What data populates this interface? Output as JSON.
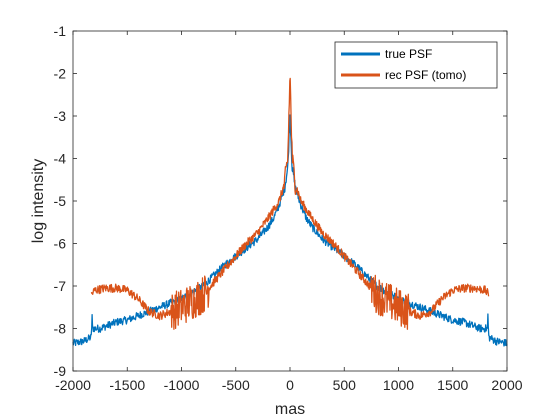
{
  "chart_data": {
    "type": "line",
    "title": "",
    "xlabel": "mas",
    "ylabel": "log intensity",
    "xlim": [
      -2000,
      2000
    ],
    "ylim": [
      -9,
      -1
    ],
    "xticks": [
      -2000,
      -1500,
      -1000,
      -500,
      0,
      500,
      1000,
      1500,
      2000
    ],
    "yticks": [
      -9,
      -8,
      -7,
      -6,
      -5,
      -4,
      -3,
      -2,
      -1
    ],
    "grid": false,
    "legend_location": "top-right",
    "series": [
      {
        "name": "true PSF",
        "color": "#0072BD",
        "x": [
          -2000,
          -1900,
          -1830,
          -1825,
          -1820,
          -1750,
          -1600,
          -1500,
          -1400,
          -1300,
          -1200,
          -1100,
          -1000,
          -900,
          -800,
          -700,
          -600,
          -500,
          -400,
          -300,
          -200,
          -150,
          -100,
          -50,
          -20,
          0,
          20,
          50,
          100,
          150,
          200,
          300,
          400,
          500,
          600,
          700,
          800,
          900,
          1000,
          1100,
          1200,
          1300,
          1400,
          1500,
          1600,
          1750,
          1820,
          1825,
          1830,
          1900,
          2000
        ],
        "y": [
          -8.35,
          -8.3,
          -8.2,
          -7.6,
          -8.0,
          -8.0,
          -7.85,
          -7.8,
          -7.7,
          -7.6,
          -7.5,
          -7.4,
          -7.3,
          -7.15,
          -7.0,
          -6.75,
          -6.5,
          -6.3,
          -6.1,
          -5.9,
          -5.6,
          -5.4,
          -5.1,
          -4.7,
          -4.2,
          -3.0,
          -4.2,
          -4.7,
          -5.1,
          -5.4,
          -5.6,
          -5.9,
          -6.1,
          -6.3,
          -6.5,
          -6.75,
          -7.0,
          -7.15,
          -7.3,
          -7.4,
          -7.5,
          -7.6,
          -7.7,
          -7.8,
          -7.85,
          -8.0,
          -8.0,
          -7.6,
          -8.2,
          -8.3,
          -8.35
        ]
      },
      {
        "name": "rec PSF (tomo)",
        "color": "#D95319",
        "x": [
          -1830,
          -1800,
          -1700,
          -1600,
          -1500,
          -1400,
          -1300,
          -1200,
          -1100,
          -1000,
          -900,
          -800,
          -700,
          -600,
          -500,
          -400,
          -300,
          -200,
          -150,
          -100,
          -50,
          -20,
          0,
          20,
          50,
          100,
          150,
          200,
          300,
          400,
          500,
          600,
          700,
          800,
          900,
          1000,
          1100,
          1200,
          1300,
          1400,
          1500,
          1600,
          1700,
          1800,
          1830
        ],
        "y": [
          -7.2,
          -7.1,
          -7.05,
          -7.05,
          -7.1,
          -7.3,
          -7.6,
          -7.7,
          -7.6,
          -7.5,
          -7.35,
          -7.2,
          -6.9,
          -6.6,
          -6.3,
          -6.0,
          -5.75,
          -5.4,
          -5.2,
          -5.0,
          -4.6,
          -4.0,
          -2.0,
          -4.0,
          -4.6,
          -5.0,
          -5.2,
          -5.4,
          -5.75,
          -6.0,
          -6.3,
          -6.6,
          -6.9,
          -7.2,
          -7.35,
          -7.5,
          -7.6,
          -7.7,
          -7.6,
          -7.3,
          -7.1,
          -7.05,
          -7.05,
          -7.1,
          -7.2
        ]
      }
    ]
  }
}
